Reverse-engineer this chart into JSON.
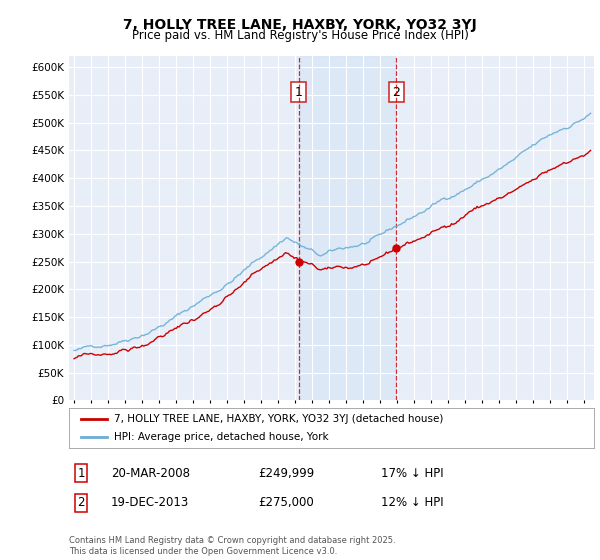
{
  "title": "7, HOLLY TREE LANE, HAXBY, YORK, YO32 3YJ",
  "subtitle": "Price paid vs. HM Land Registry's House Price Index (HPI)",
  "legend_label1": "7, HOLLY TREE LANE, HAXBY, YORK, YO32 3YJ (detached house)",
  "legend_label2": "HPI: Average price, detached house, York",
  "footer": "Contains HM Land Registry data © Crown copyright and database right 2025.\nThis data is licensed under the Open Government Licence v3.0.",
  "sale1_date": "20-MAR-2008",
  "sale1_price": "£249,999",
  "sale1_hpi": "17% ↓ HPI",
  "sale2_date": "19-DEC-2013",
  "sale2_price": "£275,000",
  "sale2_hpi": "12% ↓ HPI",
  "sale1_year": 2008.22,
  "sale2_year": 2013.97,
  "sale1_price_val": 249999,
  "sale2_price_val": 275000,
  "hpi_color": "#6baed6",
  "price_color": "#cc0000",
  "shaded_color": "#ddeeff",
  "vline_color": "#cc0000",
  "ylim": [
    0,
    620000
  ],
  "yticks": [
    0,
    50000,
    100000,
    150000,
    200000,
    250000,
    300000,
    350000,
    400000,
    450000,
    500000,
    550000,
    600000
  ],
  "background_color": "#ffffff",
  "plot_bg_color": "#e8eef8"
}
